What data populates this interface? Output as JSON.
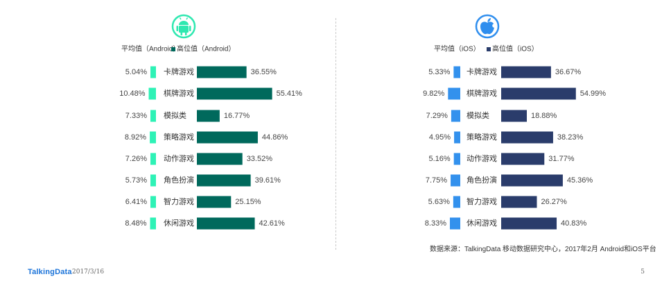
{
  "source_note": "数据来源：TalkingData 移动数据研究中心，2017年2月 Android和iOS平台",
  "footer": {
    "brand": "TalkingData",
    "date": "2017/3/16",
    "page_number": "5"
  },
  "colors": {
    "android_avg": "#2ef2b6",
    "android_high": "#00695c",
    "ios_avg": "#3391ed",
    "ios_high": "#2a3c6b",
    "android_icon": "#2ee8b0",
    "ios_icon": "#2f8eee"
  },
  "chart_data": [
    {
      "type": "bar",
      "platform_icon": "android-icon",
      "categories": [
        "卡牌游戏",
        "棋牌游戏",
        "模拟类",
        "策略游戏",
        "动作游戏",
        "角色扮演",
        "智力游戏",
        "休闲游戏"
      ],
      "series": [
        {
          "name": "平均值（Android）",
          "values": [
            5.04,
            10.48,
            7.33,
            8.92,
            7.26,
            5.73,
            6.41,
            8.48
          ]
        },
        {
          "name": "高位值（Android）",
          "values": [
            36.55,
            55.41,
            16.77,
            44.86,
            33.52,
            39.61,
            25.15,
            42.61
          ]
        }
      ],
      "value_labels": {
        "avg": [
          "5.04%",
          "10.48%",
          "7.33%",
          "8.92%",
          "7.26%",
          "5.73%",
          "6.41%",
          "8.48%"
        ],
        "high": [
          "36.55%",
          "55.41%",
          "16.77%",
          "44.86%",
          "33.52%",
          "39.61%",
          "25.15%",
          "42.61%"
        ]
      },
      "legend_position": "top"
    },
    {
      "type": "bar",
      "platform_icon": "apple-icon",
      "categories": [
        "卡牌游戏",
        "棋牌游戏",
        "模拟类",
        "策略游戏",
        "动作游戏",
        "角色扮演",
        "智力游戏",
        "休闲游戏"
      ],
      "series": [
        {
          "name": "平均值（iOS）",
          "values": [
            5.33,
            9.82,
            7.29,
            4.95,
            5.16,
            7.75,
            5.63,
            8.33
          ]
        },
        {
          "name": "高位值（iOS）",
          "values": [
            36.67,
            54.99,
            18.88,
            38.23,
            31.77,
            45.36,
            26.27,
            40.83
          ]
        }
      ],
      "value_labels": {
        "avg": [
          "5.33%",
          "9.82%",
          "7.29%",
          "4.95%",
          "5.16%",
          "7.75%",
          "5.63%",
          "8.33%"
        ],
        "high": [
          "36.67%",
          "54.99%",
          "18.88%",
          "38.23%",
          "31.77%",
          "45.36%",
          "26.27%",
          "40.83%"
        ]
      },
      "legend_position": "top"
    }
  ]
}
